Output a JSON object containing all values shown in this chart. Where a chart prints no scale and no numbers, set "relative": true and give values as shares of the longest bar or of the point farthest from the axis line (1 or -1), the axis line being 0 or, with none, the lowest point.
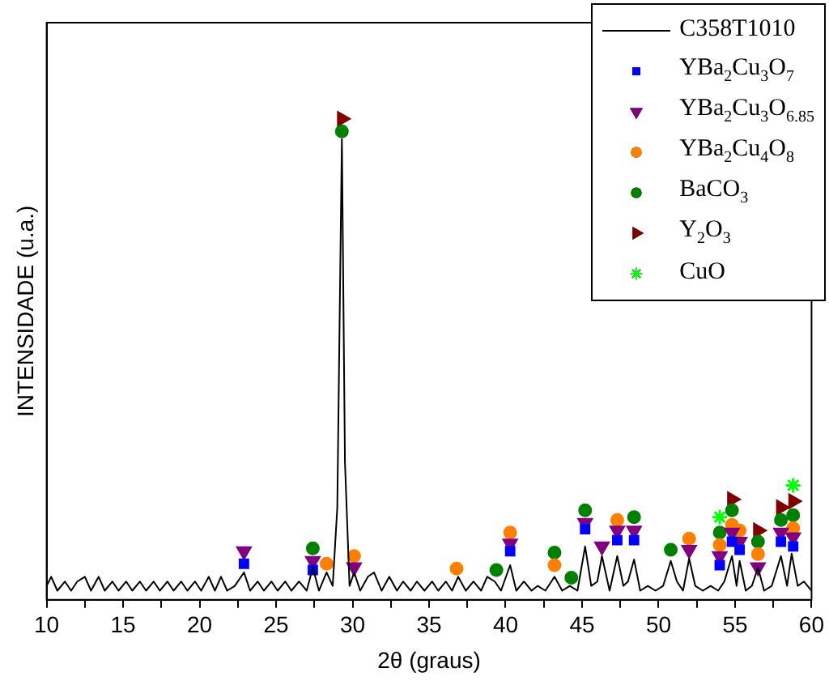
{
  "chart_data": {
    "type": "line",
    "relative": true,
    "xlabel": "2θ (graus)",
    "ylabel": "INTENSIDADE (u.a.)",
    "xlim": [
      10,
      60
    ],
    "xticks": [
      10,
      {
        "value": 12.5,
        "label": null
      },
      15,
      {
        "value": 17.5,
        "label": null
      },
      20,
      {
        "value": 22.5,
        "label": null
      },
      25,
      {
        "value": 27.5,
        "label": null
      },
      30,
      {
        "value": 32.5,
        "label": null
      },
      35,
      {
        "value": 37.5,
        "label": null
      },
      40,
      {
        "value": 42.5,
        "label": null
      },
      45,
      {
        "value": 47.5,
        "label": null
      },
      50,
      {
        "value": 52.5,
        "label": null
      },
      55,
      {
        "value": 57.5,
        "label": null
      },
      60
    ],
    "tick_labels": "x",
    "legend": "top right",
    "series": [
      {
        "name": "C358T1010",
        "color": "#000000",
        "marker": "none",
        "x": [
          10,
          10.3,
          10.7,
          11.2,
          11.6,
          12,
          12.5,
          12.9,
          13.4,
          13.8,
          14.3,
          14.7,
          15.2,
          15.6,
          16.1,
          16.5,
          17,
          17.4,
          17.9,
          18.3,
          18.8,
          19.2,
          19.7,
          20.1,
          20.6,
          21,
          21.4,
          21.8,
          22.3,
          22.9,
          23.3,
          23.8,
          24.2,
          24.7,
          25.1,
          25.6,
          26,
          26.5,
          27,
          27.4,
          27.8,
          28.3,
          28.7,
          29.0,
          29.3,
          29.5,
          29.8,
          30.1,
          30.5,
          31,
          31.4,
          31.9,
          32.4,
          32.9,
          33.3,
          33.8,
          34.2,
          34.7,
          35.2,
          35.6,
          36.1,
          36.5,
          36.9,
          37.4,
          37.9,
          38.4,
          38.8,
          39.3,
          39.7,
          40.3,
          40.7,
          41.2,
          41.7,
          42.1,
          42.6,
          43.2,
          43.7,
          44.2,
          44.7,
          45.2,
          45.6,
          46,
          46.3,
          46.8,
          47.3,
          47.7,
          48,
          48.4,
          48.8,
          49.3,
          49.8,
          50.3,
          50.8,
          51.2,
          51.6,
          52,
          52.4,
          52.9,
          53.4,
          53.9,
          54.3,
          54.8,
          55.1,
          55.3,
          55.7,
          56.1,
          56.5,
          56.9,
          57.4,
          58,
          58.4,
          58.7,
          59.1,
          59.5,
          60
        ],
        "values": [
          0.029,
          0.048,
          0.019,
          0.038,
          0.019,
          0.038,
          0.048,
          0.019,
          0.048,
          0.019,
          0.038,
          0.019,
          0.038,
          0.019,
          0.038,
          0.019,
          0.038,
          0.019,
          0.038,
          0.019,
          0.038,
          0.019,
          0.038,
          0.019,
          0.048,
          0.019,
          0.048,
          0.019,
          0.029,
          0.057,
          0.019,
          0.038,
          0.019,
          0.038,
          0.019,
          0.038,
          0.019,
          0.038,
          0.019,
          0.067,
          0.019,
          0.057,
          0.029,
          0.192,
          0.958,
          0.287,
          0.029,
          0.057,
          0.019,
          0.048,
          0.057,
          0.019,
          0.048,
          0.019,
          0.038,
          0.019,
          0.038,
          0.019,
          0.038,
          0.019,
          0.038,
          0.019,
          0.048,
          0.019,
          0.038,
          0.019,
          0.048,
          0.038,
          0.019,
          0.072,
          0.019,
          0.038,
          0.019,
          0.029,
          0.019,
          0.048,
          0.019,
          0.029,
          0.019,
          0.111,
          0.029,
          0.038,
          0.091,
          0.019,
          0.091,
          0.029,
          0.038,
          0.084,
          0.019,
          0.029,
          0.019,
          0.029,
          0.081,
          0.038,
          0.019,
          0.086,
          0.029,
          0.019,
          0.029,
          0.019,
          0.038,
          0.091,
          0.029,
          0.081,
          0.019,
          0.029,
          0.067,
          0.019,
          0.029,
          0.091,
          0.029,
          0.096,
          0.029,
          0.038,
          0.019
        ]
      },
      {
        "name": "YBa$_{2}$Cu$_{3}$O$_{7}$",
        "type": "scatter",
        "color": "#0000ff",
        "marker": "square",
        "x": [
          22.9,
          27.4,
          40.3,
          45.2,
          47.3,
          48.4,
          54,
          54.8,
          55.3,
          58,
          58.8
        ],
        "values": [
          0.075,
          0.062,
          0.101,
          0.147,
          0.124,
          0.124,
          0.072,
          0.121,
          0.104,
          0.121,
          0.111
        ]
      },
      {
        "name": "YBa$_{2}$Cu$_{3}$O$_{6.85}$",
        "type": "scatter",
        "color": "#800080",
        "marker": "triangle-down",
        "x": [
          22.9,
          27.4,
          30.1,
          40.3,
          45.2,
          46.3,
          47.3,
          48.4,
          52,
          54,
          54.8,
          55.3,
          56.5,
          58,
          58.8
        ],
        "values": [
          0.101,
          0.081,
          0.068,
          0.117,
          0.16,
          0.111,
          0.144,
          0.144,
          0.104,
          0.091,
          0.14,
          0.121,
          0.068,
          0.14,
          0.13
        ]
      },
      {
        "name": "YBa$_{2}$Cu$_{4}$O$_{8}$",
        "type": "scatter",
        "color": "#ff8000",
        "marker": "circle",
        "x": [
          28.3,
          30.1,
          36.8,
          40.3,
          43.2,
          47.3,
          52,
          54,
          54.8,
          55.3,
          56.5,
          58.8
        ],
        "values": [
          0.075,
          0.091,
          0.065,
          0.14,
          0.072,
          0.166,
          0.127,
          0.114,
          0.156,
          0.144,
          0.095,
          0.149
        ]
      },
      {
        "name": "BaCO$_{3}$",
        "type": "scatter",
        "color": "#008000",
        "marker": "circle",
        "x": [
          27.4,
          29.3,
          39.4,
          43.2,
          44.3,
          45.2,
          48.4,
          50.8,
          54,
          54.8,
          56.5,
          58,
          58.8
        ],
        "values": [
          0.107,
          0.974,
          0.062,
          0.098,
          0.046,
          0.186,
          0.172,
          0.104,
          0.14,
          0.186,
          0.121,
          0.166,
          0.176
        ]
      },
      {
        "name": "Y$_{2}$O$_{3}$",
        "type": "scatter",
        "color": "#800000",
        "marker": "triangle-right",
        "x": [
          29.3,
          54.8,
          56.5,
          58,
          58.8
        ],
        "values": [
          1,
          0.209,
          0.144,
          0.192,
          0.205
        ]
      },
      {
        "name": "CuO",
        "type": "scatter",
        "color": "#00ff00",
        "marker": "cross",
        "x": [
          54,
          58.8
        ],
        "values": [
          0.172,
          0.238
        ]
      }
    ]
  }
}
